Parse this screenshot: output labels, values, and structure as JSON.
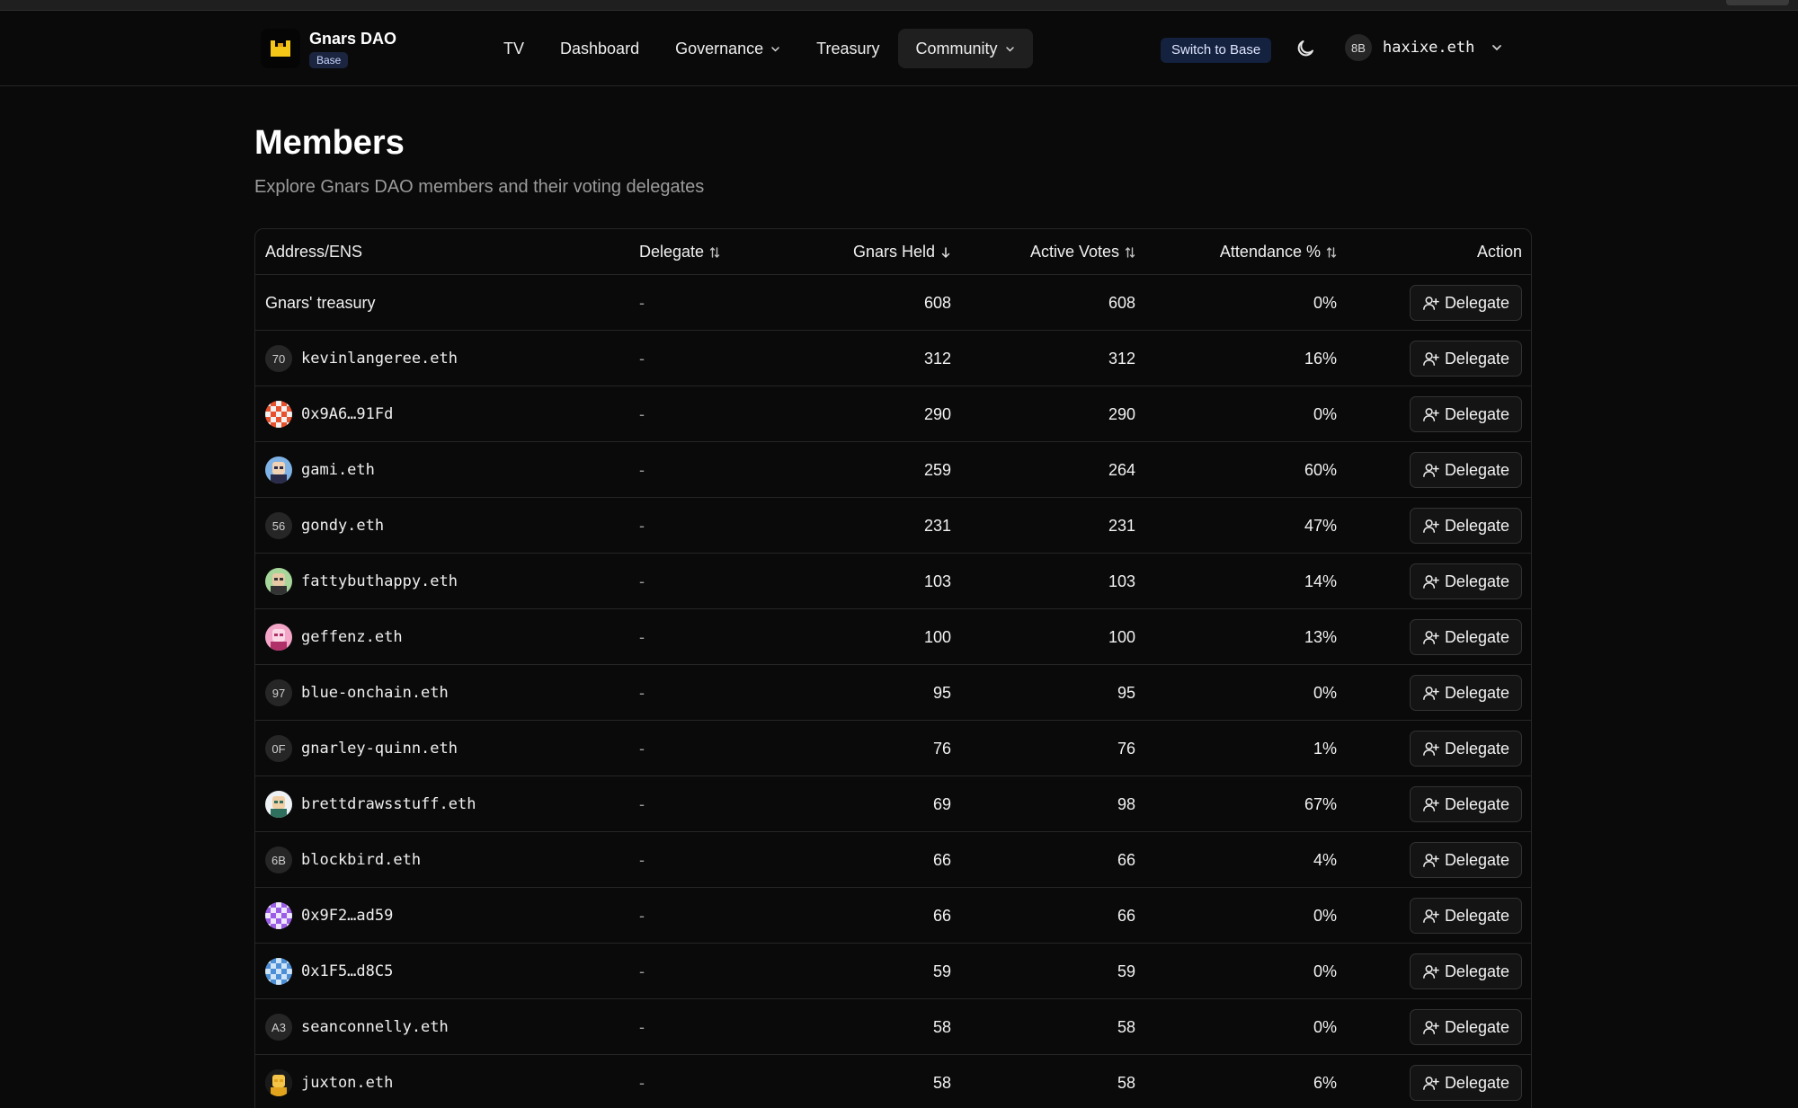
{
  "app": {
    "name": "Gnars DAO",
    "chain_badge": "Base",
    "switch_label": "Switch to Base"
  },
  "nav": {
    "items": [
      {
        "label": "TV",
        "dropdown": false
      },
      {
        "label": "Dashboard",
        "dropdown": false
      },
      {
        "label": "Governance",
        "dropdown": true
      },
      {
        "label": "Treasury",
        "dropdown": false
      },
      {
        "label": "Community",
        "dropdown": true,
        "active": true
      }
    ]
  },
  "account": {
    "avatar_text": "8B",
    "name": "haxixe.eth"
  },
  "page": {
    "title": "Members",
    "subtitle": "Explore Gnars DAO members and their voting delegates"
  },
  "table": {
    "headers": {
      "address": "Address/ENS",
      "delegate": "Delegate",
      "held": "Gnars Held",
      "votes": "Active Votes",
      "attendance": "Attendance %",
      "action": "Action"
    },
    "action_label": "Delegate",
    "rows": [
      {
        "address": "Gnars' treasury",
        "avatar": "",
        "avatar_type": "none",
        "delegate": "-",
        "held": "608",
        "votes": "608",
        "attendance": "0%"
      },
      {
        "address": "kevinlangeree.eth",
        "avatar": "70",
        "avatar_type": "text",
        "delegate": "-",
        "held": "312",
        "votes": "312",
        "attendance": "16%"
      },
      {
        "address": "0x9A6…91Fd",
        "avatar": "",
        "avatar_type": "checker-red",
        "delegate": "-",
        "held": "290",
        "votes": "290",
        "attendance": "0%"
      },
      {
        "address": "gami.eth",
        "avatar": "",
        "avatar_type": "pixel-blue",
        "delegate": "-",
        "held": "259",
        "votes": "264",
        "attendance": "60%"
      },
      {
        "address": "gondy.eth",
        "avatar": "56",
        "avatar_type": "text",
        "delegate": "-",
        "held": "231",
        "votes": "231",
        "attendance": "47%"
      },
      {
        "address": "fattybuthappy.eth",
        "avatar": "",
        "avatar_type": "pixel-green",
        "delegate": "-",
        "held": "103",
        "votes": "103",
        "attendance": "14%"
      },
      {
        "address": "geffenz.eth",
        "avatar": "",
        "avatar_type": "pixel-pink",
        "delegate": "-",
        "held": "100",
        "votes": "100",
        "attendance": "13%"
      },
      {
        "address": "blue-onchain.eth",
        "avatar": "97",
        "avatar_type": "text",
        "delegate": "-",
        "held": "95",
        "votes": "95",
        "attendance": "0%"
      },
      {
        "address": "gnarley-quinn.eth",
        "avatar": "0F",
        "avatar_type": "text",
        "delegate": "-",
        "held": "76",
        "votes": "76",
        "attendance": "1%"
      },
      {
        "address": "brettdrawsstuff.eth",
        "avatar": "",
        "avatar_type": "pixel-white",
        "delegate": "-",
        "held": "69",
        "votes": "98",
        "attendance": "67%"
      },
      {
        "address": "blockbird.eth",
        "avatar": "6B",
        "avatar_type": "text",
        "delegate": "-",
        "held": "66",
        "votes": "66",
        "attendance": "4%"
      },
      {
        "address": "0x9F2…ad59",
        "avatar": "",
        "avatar_type": "checker-purple",
        "delegate": "-",
        "held": "66",
        "votes": "66",
        "attendance": "0%"
      },
      {
        "address": "0x1F5…d8C5",
        "avatar": "",
        "avatar_type": "checker-blue",
        "delegate": "-",
        "held": "59",
        "votes": "59",
        "attendance": "0%"
      },
      {
        "address": "seanconnelly.eth",
        "avatar": "A3",
        "avatar_type": "text",
        "delegate": "-",
        "held": "58",
        "votes": "58",
        "attendance": "0%"
      },
      {
        "address": "juxton.eth",
        "avatar": "",
        "avatar_type": "pixel-yellow",
        "delegate": "-",
        "held": "58",
        "votes": "58",
        "attendance": "6%"
      }
    ]
  },
  "colors": {
    "background": "#0a0a0a",
    "border": "#262626",
    "badge_bg": "#1b2540",
    "logo_yellow": "#f5c518"
  }
}
